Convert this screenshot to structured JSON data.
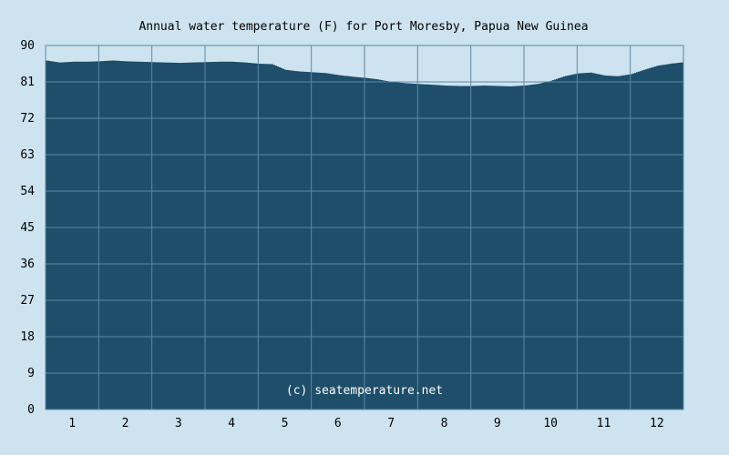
{
  "chart_data": {
    "type": "area",
    "title": "Annual water temperature (F) for Port Moresby, Papua New Guinea",
    "xlabel": "",
    "ylabel": "",
    "ylim": [
      0,
      90
    ],
    "y_ticks": [
      "0",
      "9",
      "18",
      "27",
      "36",
      "45",
      "54",
      "63",
      "72",
      "81",
      "90"
    ],
    "x_ticks": [
      "1",
      "2",
      "3",
      "4",
      "5",
      "6",
      "7",
      "8",
      "9",
      "10",
      "11",
      "12"
    ],
    "grid": true,
    "watermark": "(c) seatemperature.net",
    "fill_color": "#1e4e69",
    "grid_color": "#5f88a3",
    "background_color": "#cde3ef",
    "series": [
      {
        "x": [
          0.0,
          0.25,
          0.5,
          0.75,
          1.0,
          1.25,
          1.5,
          1.75,
          2.0,
          2.25,
          2.5,
          2.75,
          3.0,
          3.25,
          3.5,
          3.75,
          4.0,
          4.25,
          4.5,
          4.75,
          5.0,
          5.25,
          5.5,
          5.75,
          6.0,
          6.25,
          6.5,
          6.75,
          7.0,
          7.25,
          7.5,
          7.75,
          8.0,
          8.25,
          8.5,
          8.75,
          9.0,
          9.25,
          9.5,
          9.75,
          10.0,
          10.25,
          10.5,
          10.75,
          11.0,
          11.25,
          11.5,
          11.75,
          12.0
        ],
        "values": [
          86.3,
          85.8,
          86.0,
          86.0,
          86.1,
          86.3,
          86.1,
          86.0,
          85.9,
          85.8,
          85.7,
          85.8,
          85.9,
          86.0,
          86.0,
          85.8,
          85.5,
          85.4,
          84.0,
          83.6,
          83.4,
          83.2,
          82.7,
          82.3,
          82.0,
          81.6,
          81.0,
          80.7,
          80.5,
          80.3,
          80.1,
          80.0,
          80.0,
          80.1,
          80.0,
          79.9,
          80.1,
          80.5,
          81.3,
          82.4,
          83.1,
          83.3,
          82.6,
          82.4,
          82.9,
          84.0,
          85.0,
          85.5,
          85.9
        ]
      }
    ]
  }
}
